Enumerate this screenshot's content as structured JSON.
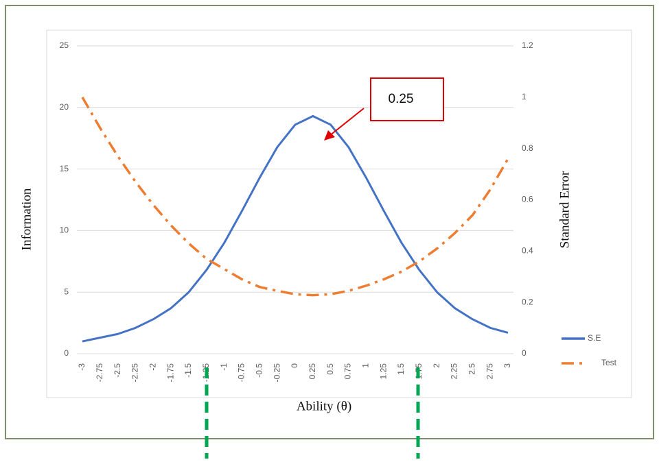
{
  "chart_data": {
    "type": "line",
    "x_label": "Ability (θ)",
    "y_label": "Information",
    "y2_label": "Standard Error",
    "annotation": "0.25",
    "categories": [
      -3,
      -2.75,
      -2.5,
      -2.25,
      -2,
      -1.75,
      -1.5,
      -1.25,
      -1,
      -0.75,
      -0.5,
      -0.25,
      0,
      0.25,
      0.5,
      0.75,
      1,
      1.25,
      1.5,
      1.75,
      2,
      2.25,
      2.5,
      2.75,
      3
    ],
    "series": [
      {
        "name": "S.E",
        "color": "#4472c4",
        "axis": "y",
        "values": [
          1.0,
          1.3,
          1.6,
          2.1,
          2.8,
          3.7,
          5.0,
          6.8,
          9.0,
          11.6,
          14.3,
          16.8,
          18.6,
          19.3,
          18.6,
          16.8,
          14.3,
          11.6,
          9.0,
          6.8,
          5.0,
          3.7,
          2.8,
          2.1,
          1.7
        ]
      },
      {
        "name": "Test",
        "color": "#ed7d31",
        "axis": "y2",
        "values": [
          1.0,
          0.88,
          0.77,
          0.67,
          0.58,
          0.5,
          0.43,
          0.37,
          0.33,
          0.29,
          0.26,
          0.245,
          0.232,
          0.228,
          0.232,
          0.245,
          0.265,
          0.29,
          0.32,
          0.36,
          0.41,
          0.47,
          0.54,
          0.64,
          0.76
        ]
      }
    ],
    "ylim": [
      0,
      25
    ],
    "yticks": [
      0,
      5,
      10,
      15,
      20,
      25
    ],
    "y2lim": [
      0,
      1.2
    ],
    "y2ticks": [
      0,
      0.2,
      0.4,
      0.6,
      0.8,
      1,
      1.2
    ],
    "grid": true,
    "legend": "right"
  }
}
